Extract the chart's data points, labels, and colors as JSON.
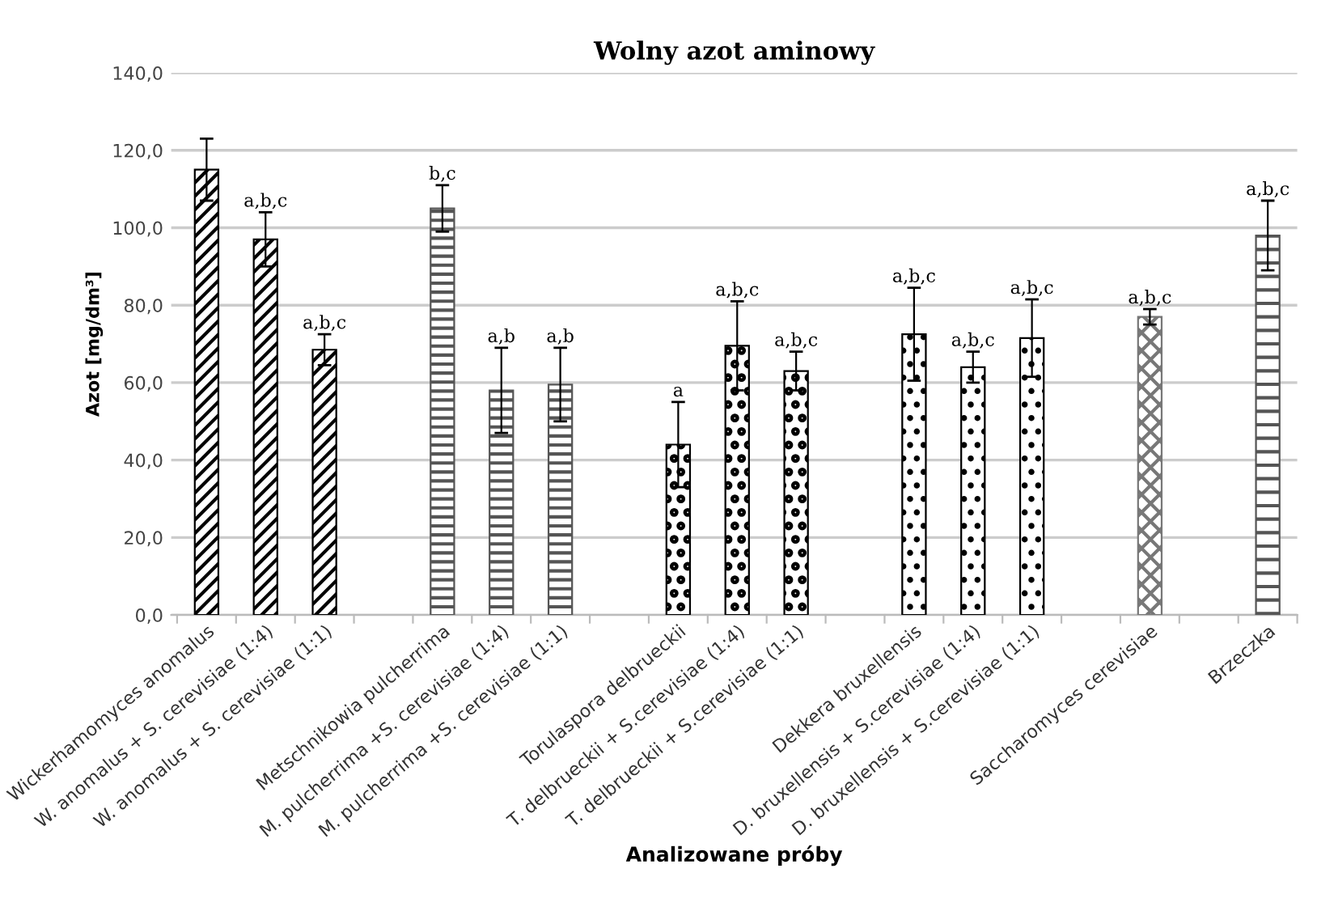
{
  "chart_data": {
    "type": "bar",
    "title": "Wolny azot aminowy",
    "xlabel": "Analizowane próby",
    "ylabel": "Azot [mg/dm³]",
    "categories": [
      "Wickerhamomyces anomalus",
      "W. anomalus + S. cerevisiae (1:4)",
      "W. anomalus + S. cerevisiae (1:1)",
      null,
      "Metschnikowia pulcherrima",
      "M. pulcherrima +S. cerevisiae (1:4)",
      "M. pulcherrima +S. cerevisiae (1:1)",
      null,
      "Torulaspora delbrueckii",
      "T. delbrueckii + S.cerevisiae (1:4)",
      "T. delbrueckii + S.cerevisiae (1:1)",
      null,
      "Dekkera bruxellensis",
      "D. bruxellensis + S.cerevisiae (1:4)",
      "D. bruxellensis + S.cerevisiae (1:1)",
      null,
      "Saccharomyces cerevisiae",
      null,
      "Brzeczka"
    ],
    "values": [
      115,
      97,
      68.5,
      null,
      105,
      58,
      59.5,
      null,
      44,
      69.5,
      63,
      null,
      72.5,
      64,
      71.5,
      null,
      77,
      null,
      98
    ],
    "errors": [
      8,
      7,
      4,
      null,
      6,
      11,
      9.5,
      null,
      11,
      11.5,
      5,
      null,
      12,
      4,
      10,
      null,
      2,
      null,
      9
    ],
    "value_labels": [
      null,
      "a,b,c",
      "a,b,c",
      null,
      "b,c",
      "a,b",
      "a,b",
      null,
      "a",
      "a,b,c",
      "a,b,c",
      null,
      "a,b,c",
      "a,b,c",
      "a,b,c",
      null,
      "a,b,c",
      null,
      "a,b,c"
    ],
    "colors": [
      "#000000",
      "#000000",
      "#000000",
      null,
      "#555555",
      "#555555",
      "#555555",
      null,
      "#000000",
      "#000000",
      "#000000",
      null,
      "#000000",
      "#000000",
      "#000000",
      null,
      "#777777",
      null,
      "#555555"
    ],
    "ylim": [
      0,
      140
    ],
    "yticks": [
      {
        "value": 0,
        "label": "0,0"
      },
      {
        "value": 20,
        "label": "20,0"
      },
      {
        "value": 40,
        "label": "40,0"
      },
      {
        "value": 60,
        "label": "60,0"
      },
      {
        "value": 80,
        "label": "80,0"
      },
      {
        "value": 100,
        "label": "100,0"
      },
      {
        "value": 120,
        "label": "120,0"
      },
      {
        "value": 140,
        "label": "140,0"
      }
    ],
    "grid": "y",
    "legend": false
  }
}
